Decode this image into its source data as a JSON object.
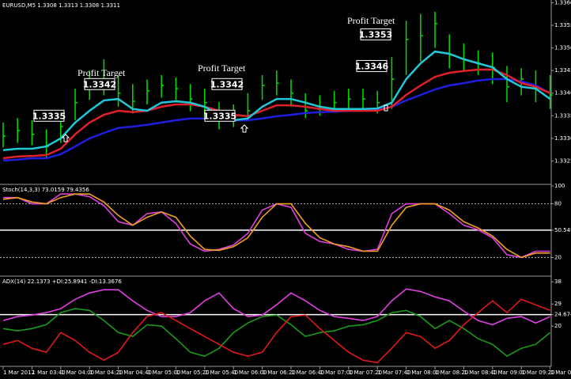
{
  "chart_data": [
    {
      "type": "ohlc",
      "title": "EURUSD,M5 1.3308 1.3313 1.3308 1.3311",
      "bar_color": "#00e000",
      "high": [
        1.33335,
        1.33345,
        1.3334,
        1.3332,
        1.3336,
        1.3341,
        1.3345,
        1.33475,
        1.3344,
        1.3342,
        1.3343,
        1.3344,
        1.33435,
        1.3342,
        1.3341,
        1.3338,
        1.33375,
        1.334,
        1.3344,
        1.3345,
        1.3343,
        1.334,
        1.33395,
        1.33405,
        1.3341,
        1.3341,
        1.33405,
        1.3348,
        1.3356,
        1.33575,
        1.3358,
        1.3353,
        1.3351,
        1.33495,
        1.3349,
        1.3346,
        1.33455,
        1.3345,
        1.3344
      ],
      "low": [
        1.3328,
        1.3329,
        1.33285,
        1.33255,
        1.3329,
        1.3334,
        1.33385,
        1.33395,
        1.3337,
        1.33355,
        1.33375,
        1.3339,
        1.33385,
        1.3336,
        1.33345,
        1.3332,
        1.33325,
        1.3334,
        1.33385,
        1.33395,
        1.3337,
        1.33345,
        1.3335,
        1.3336,
        1.33365,
        1.33365,
        1.33355,
        1.33365,
        1.3344,
        1.3347,
        1.335,
        1.33455,
        1.3345,
        1.3344,
        1.3342,
        1.3338,
        1.33395,
        1.3338,
        1.33365
      ],
      "close": [
        1.33305,
        1.33317,
        1.33309,
        1.33282,
        1.33326,
        1.33379,
        1.3341,
        1.33422,
        1.334,
        1.33382,
        1.33405,
        1.33417,
        1.3341,
        1.33387,
        1.33379,
        1.33344,
        1.33352,
        1.33361,
        1.33417,
        1.33422,
        1.334,
        1.33361,
        1.3337,
        1.33379,
        1.33387,
        1.33387,
        1.33379,
        1.33431,
        1.33519,
        1.33527,
        1.33554,
        1.33484,
        1.33475,
        1.33466,
        1.33457,
        1.33414,
        1.33431,
        1.33414,
        1.33396
      ],
      "series": [
        {
          "color": "#1e1ee0",
          "values": [
            1.33251,
            1.33253,
            1.33256,
            1.33256,
            1.33265,
            1.33282,
            1.333,
            1.33312,
            1.33323,
            1.33326,
            1.3333,
            1.33335,
            1.3334,
            1.33344,
            1.33344,
            1.33344,
            1.3334,
            1.3334,
            1.33344,
            1.33349,
            1.33352,
            1.33356,
            1.33358,
            1.33359,
            1.33361,
            1.33361,
            1.33363,
            1.3337,
            1.33384,
            1.33396,
            1.33408,
            1.33417,
            1.33422,
            1.33428,
            1.33431,
            1.33431,
            1.33426,
            1.33417,
            1.334
          ]
        },
        {
          "color": "#e0202a",
          "values": [
            1.33256,
            1.3326,
            1.33261,
            1.33263,
            1.33277,
            1.33309,
            1.33335,
            1.33352,
            1.33361,
            1.33358,
            1.33361,
            1.3337,
            1.33375,
            1.33375,
            1.3337,
            1.33361,
            1.33352,
            1.33349,
            1.33361,
            1.33373,
            1.33373,
            1.3337,
            1.33365,
            1.33361,
            1.33361,
            1.33361,
            1.33361,
            1.3337,
            1.33396,
            1.33417,
            1.33436,
            1.33445,
            1.33449,
            1.33452,
            1.33452,
            1.3344,
            1.33422,
            1.33414,
            1.334
          ]
        },
        {
          "color": "#20c8d8",
          "values": [
            1.33274,
            1.33277,
            1.33277,
            1.33282,
            1.333,
            1.33335,
            1.33361,
            1.33384,
            1.33387,
            1.33365,
            1.33361,
            1.33379,
            1.33382,
            1.33379,
            1.3337,
            1.33352,
            1.3334,
            1.33344,
            1.3337,
            1.33387,
            1.33387,
            1.33379,
            1.3337,
            1.33365,
            1.33365,
            1.33365,
            1.33366,
            1.33379,
            1.33431,
            1.33466,
            1.33492,
            1.33487,
            1.33475,
            1.33466,
            1.33457,
            1.33431,
            1.33414,
            1.3341,
            1.33387
          ]
        }
      ],
      "price_labels": [
        {
          "value": 1.3335,
          "label": "1.3335"
        },
        {
          "value": 1.3342,
          "label": "1.3342"
        },
        {
          "value": 1.3342,
          "label": "1.3342"
        },
        {
          "value": 1.3335,
          "label": "1.3335"
        },
        {
          "value": 1.3346,
          "label": "1.3346"
        },
        {
          "value": 1.3353,
          "label": "1.3353"
        }
      ],
      "annotations": [
        "Profit Target",
        "Profit Target",
        "Profit Target"
      ],
      "annotation_color": "#e0203a",
      "ylim": [
        1.332,
        1.33606
      ],
      "yticks": [
        {
          "value": 1.336,
          "label": "1.3360"
        },
        1.3355,
        {
          "value": 1.335,
          "label": "1.3350"
        },
        1.3345,
        {
          "value": 1.334,
          "label": "1.3340"
        },
        1.3335,
        {
          "value": 1.333,
          "label": "1.3330"
        },
        1.3325
      ]
    },
    {
      "type": "line",
      "title": "Stoch(14,3,3) 73.0159 79.4356",
      "series": [
        {
          "color": "#e040e0",
          "values": [
            87,
            87,
            80,
            80,
            91,
            91,
            88,
            78,
            60,
            56,
            69,
            71,
            58,
            35,
            27,
            29,
            34,
            47,
            73,
            80,
            76,
            47,
            38,
            35,
            29,
            27,
            29,
            69,
            80,
            80,
            80,
            69,
            56,
            51,
            42,
            23,
            20,
            27,
            27
          ]
        },
        {
          "color": "#f0a020",
          "values": [
            85,
            87,
            82,
            80,
            87,
            91,
            91,
            82,
            67,
            56,
            65,
            71,
            65,
            44,
            29,
            28,
            32,
            42,
            65,
            80,
            80,
            58,
            42,
            35,
            32,
            27,
            27,
            56,
            76,
            80,
            80,
            73,
            60,
            53,
            44,
            29,
            20,
            25,
            25
          ]
        }
      ],
      "levels": [
        80,
        20
      ],
      "reference_line": 50.5495,
      "ylim": [
        0,
        100
      ],
      "yticks": [
        100,
        80,
        50.5495,
        20
      ]
    },
    {
      "type": "line",
      "title": "ADX(14) 22.1373 +DI:25.8941 -DI:13.3676",
      "categories": [
        "1 Mar 2012",
        null,
        "1 Mar 03:40",
        null,
        "1 Mar 04:00",
        null,
        "1 Mar 04:20",
        null,
        "1 Mar 04:40",
        null,
        "1 Mar 05:00",
        null,
        "1 Mar 05:20",
        null,
        "1 Mar 05:40",
        null,
        "1 Mar 06:00",
        null,
        "1 Mar 06:20",
        null,
        "1 Mar 06:40",
        null,
        "1 Mar 07:00",
        null,
        "1 Mar 07:20",
        null,
        "1 Mar 07:40",
        null,
        "1 Mar 08:00",
        null,
        "1 Mar 08:20",
        null,
        "1 Mar 08:40",
        null,
        "1 Mar 09:00",
        null,
        "1 Mar 09:20",
        null,
        "1 Mar 09:40"
      ],
      "series": [
        {
          "color": "#e040e0",
          "values": [
            22.3,
            23.9,
            24.5,
            25.5,
            27.1,
            30.9,
            33.5,
            34.8,
            34.8,
            30.3,
            26.4,
            23.9,
            23.9,
            25.5,
            30.3,
            33.5,
            27.1,
            23.9,
            24.5,
            28.7,
            33.5,
            30.3,
            26.4,
            23.9,
            23.2,
            22.3,
            23.9,
            30.3,
            35.1,
            34.1,
            31.9,
            30.3,
            26.1,
            22.3,
            20.6,
            23.2,
            23.9,
            21.3,
            23.9
          ]
        },
        {
          "color": "#1a9a1a",
          "values": [
            19.0,
            18.1,
            19.0,
            20.6,
            25.5,
            27.1,
            26.4,
            22.3,
            17.4,
            15.8,
            20.6,
            20,
            14.9,
            9.4,
            7.8,
            11.0,
            17.4,
            21.3,
            23.9,
            24.5,
            20.6,
            15.8,
            17.4,
            18.1,
            20,
            20.6,
            22.3,
            25.5,
            26.4,
            23.9,
            19.0,
            22.3,
            19.0,
            14.9,
            12.6,
            7.8,
            11.0,
            12.6,
            17.4
          ]
        },
        {
          "color": "#e01818",
          "values": [
            12.6,
            14.2,
            11.0,
            9.4,
            17.4,
            14.2,
            9.4,
            6.2,
            9.4,
            17.4,
            23.9,
            25.5,
            22.3,
            19.0,
            15.8,
            12.6,
            9.4,
            7.8,
            9.4,
            17.4,
            23.9,
            24.5,
            19.0,
            14.2,
            9.4,
            6.2,
            5.2,
            11.0,
            17.4,
            15.8,
            11.0,
            14.2,
            20.6,
            25.5,
            30.3,
            25.5,
            30.9,
            28.7,
            26.4
          ]
        }
      ],
      "reference_line": 24.6749,
      "ylim": [
        4,
        40
      ],
      "yticks": [
        38,
        29,
        24.6749,
        20
      ]
    }
  ]
}
